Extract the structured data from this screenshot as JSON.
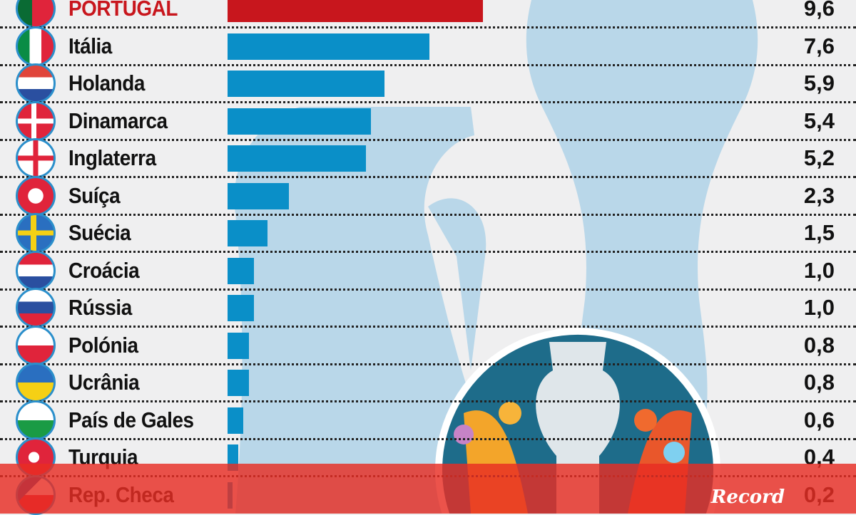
{
  "chart_data": {
    "type": "bar",
    "orientation": "horizontal",
    "title": "",
    "categories": [
      "PORTUGAL",
      "Itália",
      "Holanda",
      "Dinamarca",
      "Inglaterra",
      "Suíça",
      "Suécia",
      "Croácia",
      "Rússia",
      "Polónia",
      "Ucrânia",
      "País de Gales",
      "Turquia",
      "Rep. Checa"
    ],
    "values": [
      9.6,
      7.6,
      5.9,
      5.4,
      5.2,
      2.3,
      1.5,
      1.0,
      1.0,
      0.8,
      0.8,
      0.6,
      0.4,
      0.2
    ],
    "value_labels": [
      "9,6",
      "7,6",
      "5,9",
      "5,4",
      "5,2",
      "2,3",
      "1,5",
      "1,0",
      "1,0",
      "0,8",
      "0,8",
      "0,6",
      "0,4",
      "0,2"
    ],
    "highlight_index": 0,
    "colors": {
      "highlight": "#c8161d",
      "bar": "#0a8fc8"
    },
    "xlim": [
      0,
      9.6
    ]
  },
  "brand": "Record"
}
